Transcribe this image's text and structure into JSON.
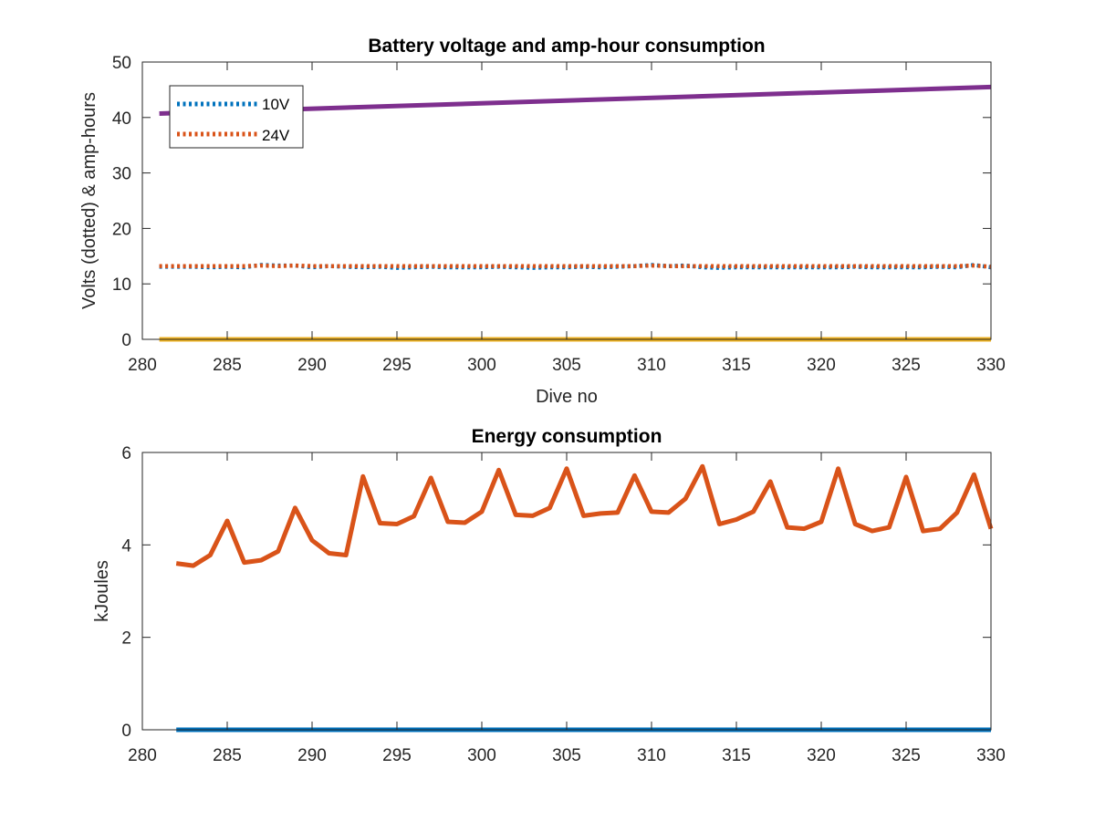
{
  "chart_data": [
    {
      "type": "line",
      "title": "Battery voltage and amp-hour consumption",
      "xlabel": "Dive no",
      "ylabel": "Volts (dotted) & amp-hours",
      "xlim": [
        280,
        330
      ],
      "ylim": [
        0,
        50
      ],
      "xticks": [
        280,
        285,
        290,
        295,
        300,
        305,
        310,
        315,
        320,
        325,
        330
      ],
      "yticks": [
        0,
        10,
        20,
        30,
        40,
        50
      ],
      "grid": false,
      "legend_position": "top-left",
      "series": [
        {
          "name": "10V",
          "color": "#0072BD",
          "style": "dotted",
          "in_legend": true,
          "x": [
            281,
            282,
            283,
            284,
            285,
            286,
            287,
            288,
            289,
            290,
            291,
            292,
            293,
            294,
            295,
            296,
            297,
            298,
            299,
            300,
            301,
            302,
            303,
            304,
            305,
            306,
            307,
            308,
            309,
            310,
            311,
            312,
            313,
            314,
            315,
            316,
            317,
            318,
            319,
            320,
            321,
            322,
            323,
            324,
            325,
            326,
            327,
            328,
            329,
            330
          ],
          "y": [
            13.1,
            13.1,
            13.1,
            13.0,
            13.1,
            13.0,
            13.4,
            13.3,
            13.3,
            13.0,
            13.2,
            13.1,
            13.0,
            13.1,
            12.9,
            13.0,
            13.1,
            13.0,
            13.0,
            13.0,
            13.1,
            13.0,
            12.9,
            13.0,
            13.0,
            13.1,
            13.0,
            13.1,
            13.2,
            13.4,
            13.2,
            13.3,
            13.0,
            12.9,
            13.0,
            13.0,
            13.0,
            13.0,
            13.0,
            13.0,
            13.0,
            13.1,
            13.0,
            13.0,
            13.0,
            13.0,
            13.1,
            13.0,
            13.4,
            13.0
          ]
        },
        {
          "name": "24V",
          "color": "#D95319",
          "style": "dotted",
          "in_legend": true,
          "x": [
            281,
            282,
            283,
            284,
            285,
            286,
            287,
            288,
            289,
            290,
            291,
            292,
            293,
            294,
            295,
            296,
            297,
            298,
            299,
            300,
            301,
            302,
            303,
            304,
            305,
            306,
            307,
            308,
            309,
            310,
            311,
            312,
            313,
            314,
            315,
            316,
            317,
            318,
            319,
            320,
            321,
            322,
            323,
            324,
            325,
            326,
            327,
            328,
            329,
            330
          ],
          "y": [
            13.2,
            13.2,
            13.2,
            13.2,
            13.2,
            13.2,
            13.3,
            13.2,
            13.3,
            13.2,
            13.2,
            13.2,
            13.2,
            13.2,
            13.2,
            13.2,
            13.2,
            13.2,
            13.2,
            13.2,
            13.2,
            13.2,
            13.2,
            13.2,
            13.2,
            13.2,
            13.2,
            13.2,
            13.2,
            13.3,
            13.2,
            13.2,
            13.2,
            13.2,
            13.2,
            13.2,
            13.2,
            13.2,
            13.2,
            13.2,
            13.2,
            13.2,
            13.2,
            13.2,
            13.2,
            13.2,
            13.2,
            13.2,
            13.3,
            13.1
          ]
        },
        {
          "name": "",
          "color": "#EDB120",
          "style": "solid",
          "in_legend": false,
          "x": [
            281,
            330
          ],
          "y": [
            0,
            0
          ]
        },
        {
          "name": "",
          "color": "#7E2F8E",
          "style": "solid",
          "in_legend": false,
          "x": [
            281,
            330
          ],
          "y": [
            40.7,
            45.5
          ]
        }
      ]
    },
    {
      "type": "line",
      "title": "Energy consumption",
      "xlabel": "",
      "ylabel": "kJoules",
      "xlim": [
        280,
        330
      ],
      "ylim": [
        0,
        6
      ],
      "xticks": [
        280,
        285,
        290,
        295,
        300,
        305,
        310,
        315,
        320,
        325,
        330
      ],
      "yticks": [
        0,
        2,
        4,
        6
      ],
      "grid": false,
      "series": [
        {
          "name": "",
          "color": "#0072BD",
          "style": "solid",
          "x": [
            282,
            330
          ],
          "y": [
            0,
            0
          ]
        },
        {
          "name": "",
          "color": "#D95319",
          "style": "solid",
          "x": [
            282,
            283,
            284,
            285,
            286,
            287,
            288,
            289,
            290,
            291,
            292,
            293,
            294,
            295,
            296,
            297,
            298,
            299,
            300,
            301,
            302,
            303,
            304,
            305,
            306,
            307,
            308,
            309,
            310,
            311,
            312,
            313,
            314,
            315,
            316,
            317,
            318,
            319,
            320,
            321,
            322,
            323,
            324,
            325,
            326,
            327,
            328,
            329,
            330
          ],
          "y": [
            3.6,
            3.55,
            3.78,
            4.52,
            3.62,
            3.67,
            3.86,
            4.8,
            4.1,
            3.82,
            3.78,
            5.48,
            4.47,
            4.45,
            4.62,
            5.45,
            4.5,
            4.48,
            4.72,
            5.62,
            4.65,
            4.63,
            4.8,
            5.65,
            4.63,
            4.68,
            4.7,
            5.5,
            4.72,
            4.7,
            5.0,
            5.7,
            4.45,
            4.55,
            4.72,
            5.37,
            4.38,
            4.35,
            4.5,
            5.65,
            4.45,
            4.3,
            4.38,
            5.47,
            4.3,
            4.35,
            4.7,
            5.52,
            4.35
          ]
        }
      ]
    }
  ]
}
